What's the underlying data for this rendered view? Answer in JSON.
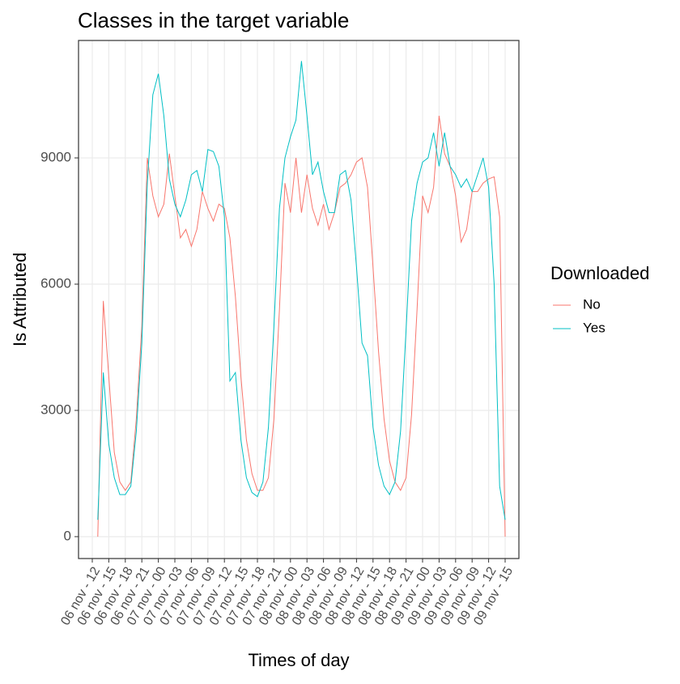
{
  "chart_data": {
    "type": "line",
    "title": "Classes in the target variable",
    "x_label": "Times of day",
    "y_label": "Is Attributed",
    "legend_title": "Downloaded",
    "legend_position": "right",
    "grid": true,
    "x": [
      13,
      14,
      15,
      16,
      17,
      18,
      19,
      20,
      21,
      22,
      23,
      24,
      25,
      26,
      27,
      28,
      29,
      30,
      31,
      32,
      33,
      34,
      35,
      36,
      37,
      38,
      39,
      40,
      41,
      42,
      43,
      44,
      45,
      46,
      47,
      48,
      49,
      50,
      51,
      52,
      53,
      54,
      55,
      56,
      57,
      58,
      59,
      60,
      61,
      62,
      63,
      64,
      65,
      66,
      67,
      68,
      69,
      70,
      71,
      72,
      73,
      74,
      75,
      76,
      77,
      78,
      79,
      80,
      81,
      82,
      83,
      84,
      85,
      86,
      87
    ],
    "series": [
      {
        "name": "No",
        "color": "#F8766D",
        "values": [
          0,
          5600,
          3800,
          2000,
          1300,
          1100,
          1300,
          2800,
          5000,
          9000,
          8100,
          7600,
          7900,
          9100,
          8100,
          7100,
          7300,
          6900,
          7300,
          8200,
          7800,
          7500,
          7900,
          7800,
          7100,
          5700,
          3800,
          2300,
          1500,
          1100,
          1100,
          1400,
          2800,
          5400,
          8400,
          7700,
          9000,
          7700,
          8600,
          7800,
          7400,
          7900,
          7300,
          7700,
          8300,
          8400,
          8600,
          8900,
          9000,
          8300,
          6400,
          4400,
          2800,
          1800,
          1300,
          1100,
          1400,
          2900,
          5400,
          8100,
          7700,
          8300,
          10000,
          9100,
          8800,
          8100,
          7000,
          7300,
          8200,
          8200,
          8400,
          8500,
          8550,
          7600,
          0
        ]
      },
      {
        "name": "Yes",
        "color": "#00BFC4",
        "values": [
          400,
          3900,
          2200,
          1400,
          1000,
          1000,
          1200,
          2500,
          4600,
          8400,
          10500,
          11000,
          10000,
          8500,
          7900,
          7600,
          8000,
          8600,
          8700,
          8200,
          9200,
          9150,
          8800,
          7600,
          3700,
          3900,
          2300,
          1400,
          1050,
          950,
          1300,
          2600,
          5000,
          7800,
          9000,
          9500,
          9900,
          11300,
          10000,
          8600,
          8900,
          8200,
          7700,
          7700,
          8600,
          8700,
          8000,
          6400,
          4600,
          4300,
          2600,
          1700,
          1200,
          1000,
          1300,
          2500,
          4900,
          7500,
          8400,
          8900,
          9000,
          9600,
          8800,
          9600,
          8800,
          8600,
          8300,
          8500,
          8200,
          8600,
          9000,
          8300,
          6000,
          1200,
          400
        ]
      }
    ],
    "xlim": [
      9.5,
      89.5
    ],
    "xticks": [
      {
        "value": 12,
        "label": "06 nov - 12"
      },
      {
        "value": 15,
        "label": "06 nov - 15"
      },
      {
        "value": 18,
        "label": "06 nov - 18"
      },
      {
        "value": 21,
        "label": "06 nov - 21"
      },
      {
        "value": 24,
        "label": "07 nov - 00"
      },
      {
        "value": 27,
        "label": "07 nov - 03"
      },
      {
        "value": 30,
        "label": "07 nov - 06"
      },
      {
        "value": 33,
        "label": "07 nov - 09"
      },
      {
        "value": 36,
        "label": "07 nov - 12"
      },
      {
        "value": 39,
        "label": "07 nov - 15"
      },
      {
        "value": 42,
        "label": "07 nov - 18"
      },
      {
        "value": 45,
        "label": "07 nov - 21"
      },
      {
        "value": 48,
        "label": "08 nov - 00"
      },
      {
        "value": 51,
        "label": "08 nov - 03"
      },
      {
        "value": 54,
        "label": "08 nov - 06"
      },
      {
        "value": 57,
        "label": "08 nov - 09"
      },
      {
        "value": 60,
        "label": "08 nov - 12"
      },
      {
        "value": 63,
        "label": "08 nov - 15"
      },
      {
        "value": 66,
        "label": "08 nov - 18"
      },
      {
        "value": 69,
        "label": "08 nov - 21"
      },
      {
        "value": 72,
        "label": "09 nov - 00"
      },
      {
        "value": 75,
        "label": "09 nov - 03"
      },
      {
        "value": 78,
        "label": "09 nov - 06"
      },
      {
        "value": 81,
        "label": "09 nov - 09"
      },
      {
        "value": 84,
        "label": "09 nov - 12"
      },
      {
        "value": 87,
        "label": "09 nov - 15"
      }
    ],
    "ylim": [
      -520,
      11790
    ],
    "yticks": [
      0,
      3000,
      6000,
      9000
    ]
  }
}
